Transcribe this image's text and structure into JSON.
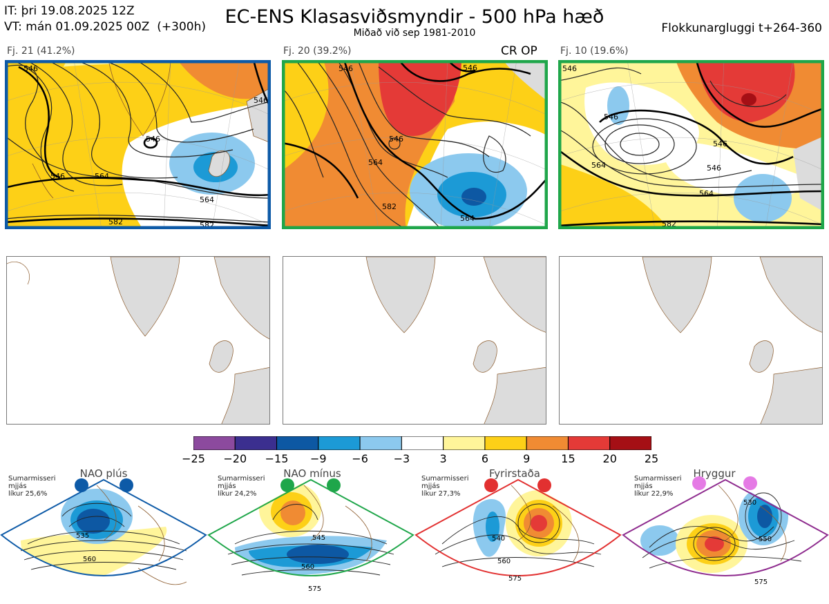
{
  "header": {
    "init_time": "IT: þri 19.08.2025 12Z",
    "valid_time": "VT: mán 01.09.2025 00Z  (+300h)",
    "title": "EC-ENS Klasasviðsmyndir - 500 hPa hæð",
    "subtitle": "Miðað við sep 1981-2010",
    "window": "Flokkunargluggi t+264-360"
  },
  "clusters": [
    {
      "label": "Fj. 21 (41.2%)",
      "frame_color": "#0d5aa7",
      "tag": "",
      "contours": [
        "546",
        "564",
        "564",
        "582",
        "546",
        "582",
        "546",
        "546"
      ]
    },
    {
      "label": "Fj. 20 (39.2%)",
      "frame_color": "#1fa64a",
      "tag": "CR OP",
      "contours": [
        "546",
        "564",
        "582",
        "564",
        "546",
        "546"
      ]
    },
    {
      "label": "Fj. 10 (19.6%)",
      "frame_color": "#1fa64a",
      "tag": "",
      "contours": [
        "546",
        "546",
        "564",
        "546",
        "582",
        "546",
        "564"
      ]
    }
  ],
  "colorbar": {
    "colors": [
      "#8c4a9e",
      "#3b2f8f",
      "#0d58a3",
      "#1c9ad6",
      "#8cc9ee",
      "#ffffff",
      "#fff59a",
      "#fdd017",
      "#f08b33",
      "#e43a37",
      "#a50f15"
    ],
    "ticks": [
      "−25",
      "−20",
      "−15",
      "−9",
      "−6",
      "−3",
      "3",
      "6",
      "9",
      "15",
      "20",
      "25"
    ]
  },
  "regimes": [
    {
      "name": "NAO plús",
      "note": "Sumarmisseri\nmjjás\nlíkur 25,6%",
      "color": "#0d5aa7",
      "dot_color": "#0d5aa7",
      "contours": [
        "535",
        "560"
      ]
    },
    {
      "name": "NAO mínus",
      "note": "Sumarmisseri\nmjjás\nlíkur 24,2%",
      "color": "#1fa64a",
      "dot_color": "#1fa64a",
      "contours": [
        "545",
        "560",
        "575"
      ]
    },
    {
      "name": "Fyrirstaða",
      "note": "Sumarmisseri\nmjjás\nlíkur 27,3%",
      "color": "#e23030",
      "dot_color": "#e23030",
      "contours": [
        "540",
        "560",
        "575"
      ]
    },
    {
      "name": "Hryggur",
      "note": "Sumarmisseri\nmjjás\nlíkur 22,9%",
      "color": "#8e2b8e",
      "dot_color": "#e57ae5",
      "contours": [
        "530",
        "550",
        "575"
      ]
    }
  ]
}
